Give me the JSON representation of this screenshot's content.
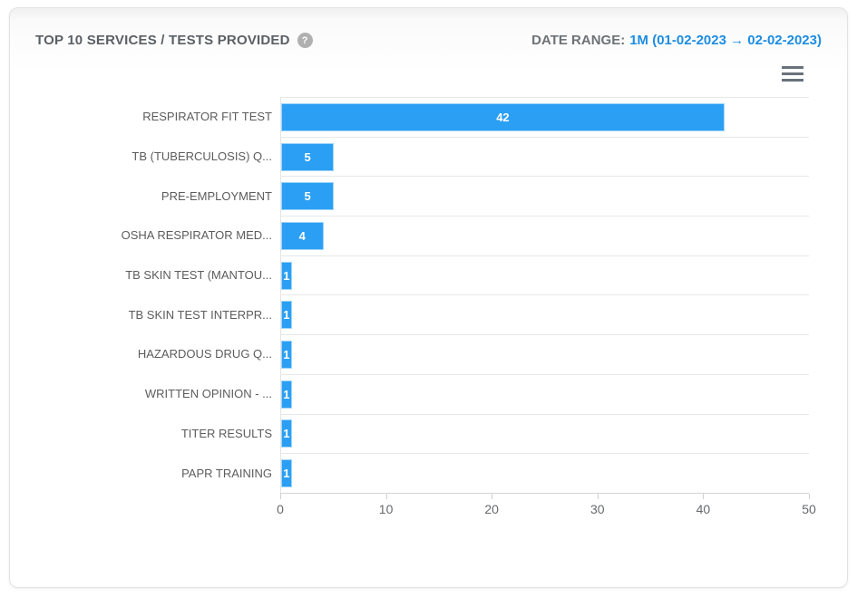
{
  "header": {
    "title": "TOP 10 SERVICES / TESTS PROVIDED",
    "help_icon_glyph": "?",
    "date_range_label": "DATE RANGE:",
    "date_range_value": "1M (01-02-2023 → 02-02-2023)"
  },
  "toolbar": {
    "menu_icon": "hamburger-icon"
  },
  "chart_data": {
    "type": "bar",
    "orientation": "horizontal",
    "title": "TOP 10 SERVICES / TESTS PROVIDED",
    "categories": [
      "RESPIRATOR FIT TEST",
      "TB (TUBERCULOSIS) Q...",
      "PRE-EMPLOYMENT",
      "OSHA RESPIRATOR MED...",
      "TB SKIN TEST (MANTOU...",
      "TB SKIN TEST INTERPR...",
      "HAZARDOUS DRUG Q...",
      "WRITTEN OPINION - ...",
      "TITER RESULTS",
      "PAPR TRAINING"
    ],
    "values": [
      42,
      5,
      5,
      4,
      1,
      1,
      1,
      1,
      1,
      1
    ],
    "xlabel": "",
    "ylabel": "",
    "xlim": [
      0,
      50
    ],
    "xticks": [
      0,
      10,
      20,
      30,
      40,
      50
    ],
    "grid": "between-categories-only",
    "legend": "none",
    "bar_color": "#2b9ff3",
    "data_label_color": "#ffffff"
  },
  "colors": {
    "accent_blue": "#1d8de2",
    "bar_blue": "#2b9ff3",
    "title_gray": "#5b6065",
    "axis_label_gray": "#66696c",
    "gridline": "#e8e8e8"
  }
}
